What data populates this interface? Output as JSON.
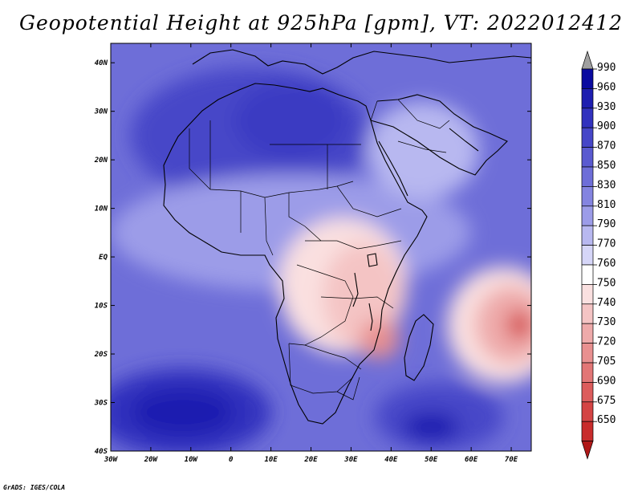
{
  "title": "Geopotential Height at 925hPa [gpm], VT: 2022012412",
  "credit": "GrADS: IGES/COLA",
  "map": {
    "lon_range": [
      -30,
      75
    ],
    "lat_range": [
      -40,
      44
    ],
    "lon_ticks": [
      {
        "lon": -30,
        "label": "30W"
      },
      {
        "lon": -20,
        "label": "20W"
      },
      {
        "lon": -10,
        "label": "10W"
      },
      {
        "lon": 0,
        "label": "0"
      },
      {
        "lon": 10,
        "label": "10E"
      },
      {
        "lon": 20,
        "label": "20E"
      },
      {
        "lon": 30,
        "label": "30E"
      },
      {
        "lon": 40,
        "label": "40E"
      },
      {
        "lon": 50,
        "label": "50E"
      },
      {
        "lon": 60,
        "label": "60E"
      },
      {
        "lon": 70,
        "label": "70E"
      }
    ],
    "lat_ticks": [
      {
        "lat": 40,
        "label": "40N"
      },
      {
        "lat": 30,
        "label": "30N"
      },
      {
        "lat": 20,
        "label": "20N"
      },
      {
        "lat": 10,
        "label": "10N"
      },
      {
        "lat": 0,
        "label": "EQ"
      },
      {
        "lat": -10,
        "label": "10S"
      },
      {
        "lat": -20,
        "label": "20S"
      },
      {
        "lat": -30,
        "label": "30S"
      },
      {
        "lat": -40,
        "label": "40S"
      }
    ]
  },
  "colorbar": {
    "levels": [
      {
        "label": "990",
        "color": "#0a0aa0"
      },
      {
        "label": "960",
        "color": "#1e1eb0"
      },
      {
        "label": "930",
        "color": "#3232be"
      },
      {
        "label": "900",
        "color": "#4646c8"
      },
      {
        "label": "870",
        "color": "#5a5ad0"
      },
      {
        "label": "850",
        "color": "#6e6ed8"
      },
      {
        "label": "830",
        "color": "#8484e0"
      },
      {
        "label": "810",
        "color": "#9c9ce8"
      },
      {
        "label": "790",
        "color": "#b8b8f0"
      },
      {
        "label": "770",
        "color": "#d6d6f8"
      },
      {
        "label": "760",
        "color": "#ffffff"
      },
      {
        "label": "750",
        "color": "#fae0e0"
      },
      {
        "label": "740",
        "color": "#f4c4c4"
      },
      {
        "label": "730",
        "color": "#eeaaaa"
      },
      {
        "label": "720",
        "color": "#e89090"
      },
      {
        "label": "705",
        "color": "#e27676"
      },
      {
        "label": "690",
        "color": "#dc5c5c"
      },
      {
        "label": "675",
        "color": "#d44444"
      },
      {
        "label": "650",
        "color": "#c82c2c"
      }
    ],
    "top_arrow_color": "#a0a0a0",
    "bottom_arrow_color": "#b01818"
  },
  "field": {
    "background_color": "#6e6ed8",
    "features": [
      {
        "name": "north-africa-high",
        "lon": 5,
        "lat": 25,
        "rx_deg": 30,
        "ry_deg": 14,
        "color": "#4646c8"
      },
      {
        "name": "sahara-core",
        "lon": 15,
        "lat": 28,
        "rx_deg": 14,
        "ry_deg": 8,
        "color": "#3a3ac2"
      },
      {
        "name": "south-atlantic-high",
        "lon": -12,
        "lat": -32,
        "rx_deg": 22,
        "ry_deg": 9,
        "color": "#3232be"
      },
      {
        "name": "south-atlantic-core",
        "lon": -12,
        "lat": -32,
        "rx_deg": 13,
        "ry_deg": 5,
        "color": "#1e1eb0"
      },
      {
        "name": "indian-ocean-high",
        "lon": 52,
        "lat": -33,
        "rx_deg": 16,
        "ry_deg": 7,
        "color": "#4646c8"
      },
      {
        "name": "indian-ocean-core",
        "lon": 50,
        "lat": -35,
        "rx_deg": 7,
        "ry_deg": 3,
        "color": "#1e1eb0"
      },
      {
        "name": "mid-africa-band",
        "lon": 15,
        "lat": 5,
        "rx_deg": 45,
        "ry_deg": 12,
        "color": "#9c9ce8"
      },
      {
        "name": "arabia-light",
        "lon": 48,
        "lat": 22,
        "rx_deg": 14,
        "ry_deg": 10,
        "color": "#b8b8f0"
      },
      {
        "name": "central-africa-low",
        "lon": 28,
        "lat": -6,
        "rx_deg": 16,
        "ry_deg": 14,
        "color": "#fae0e0"
      },
      {
        "name": "east-africa-low",
        "lon": 33,
        "lat": -8,
        "rx_deg": 10,
        "ry_deg": 11,
        "color": "#f4c4c4"
      },
      {
        "name": "mozambique-low",
        "lon": 37,
        "lat": -17,
        "rx_deg": 5,
        "ry_deg": 4,
        "color": "#e89090"
      },
      {
        "name": "mascarene-low-outer",
        "lon": 68,
        "lat": -14,
        "rx_deg": 14,
        "ry_deg": 12,
        "color": "#fae0e0"
      },
      {
        "name": "mascarene-low-mid",
        "lon": 70,
        "lat": -14,
        "rx_deg": 9,
        "ry_deg": 8,
        "color": "#eeaaaa"
      },
      {
        "name": "mascarene-low-core",
        "lon": 72,
        "lat": -14,
        "rx_deg": 3,
        "ry_deg": 3,
        "color": "#d44444"
      }
    ]
  }
}
